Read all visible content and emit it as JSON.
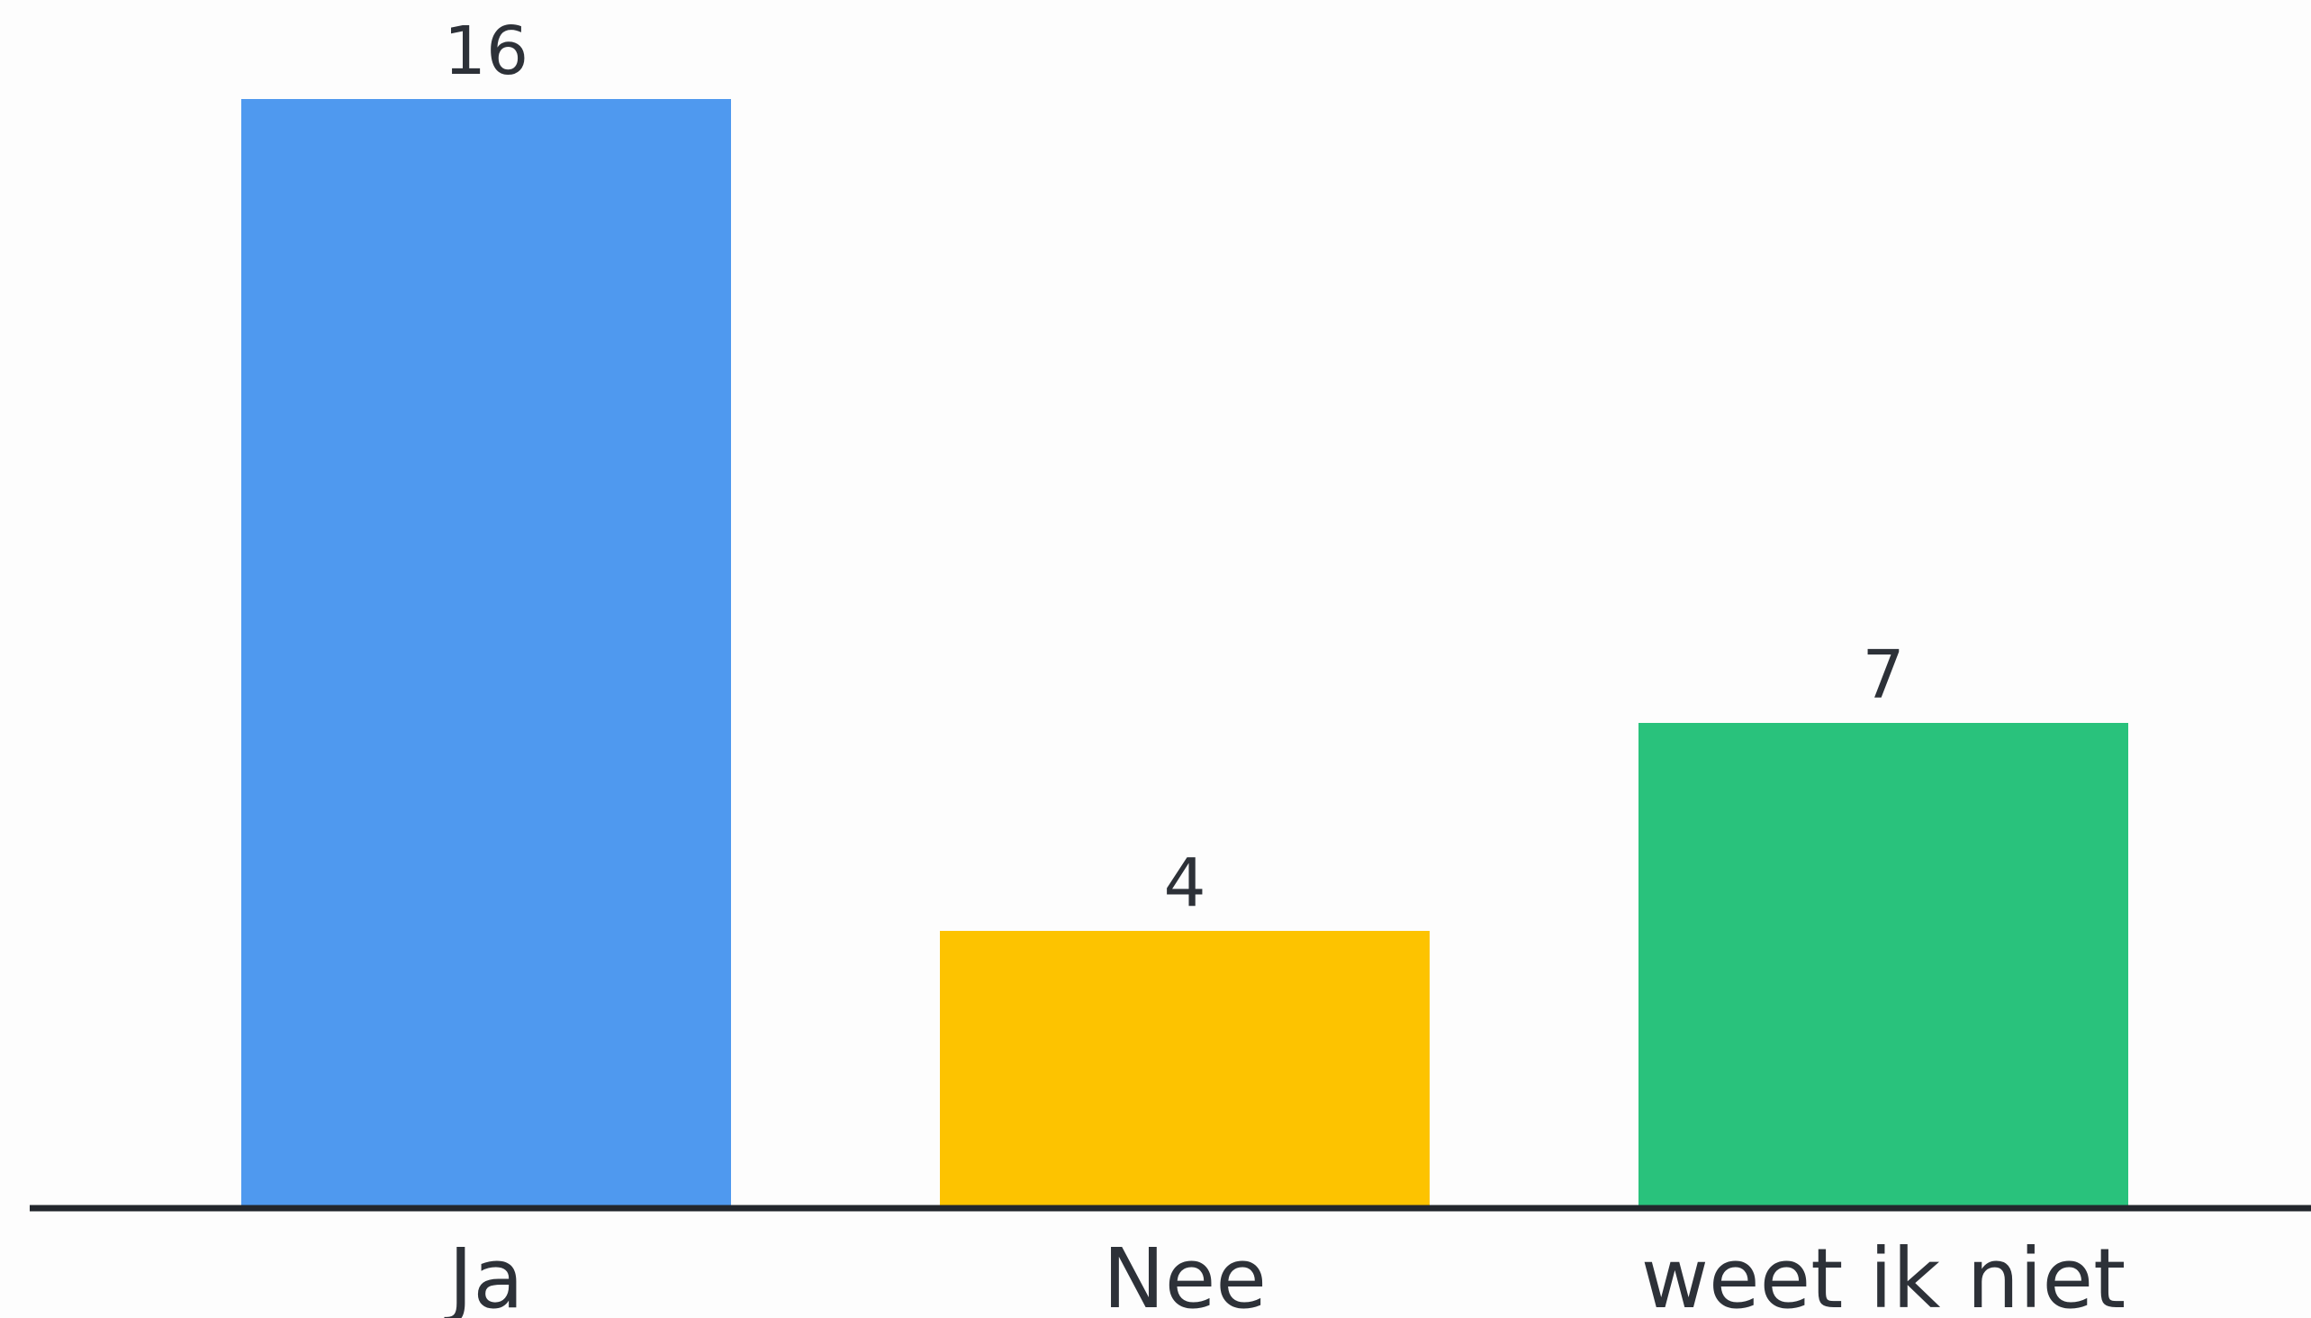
{
  "chart_data": {
    "type": "bar",
    "categories": [
      "Ja",
      "Nee",
      "weet ik niet"
    ],
    "values": [
      16,
      4,
      7
    ],
    "colors": [
      "#4f99ef",
      "#fdc300",
      "#29c27c"
    ],
    "data_labels": [
      "16",
      "4",
      "7"
    ],
    "axis_color": "#22262c",
    "ylim": [
      0,
      16
    ],
    "grid": false,
    "legend": "none"
  }
}
